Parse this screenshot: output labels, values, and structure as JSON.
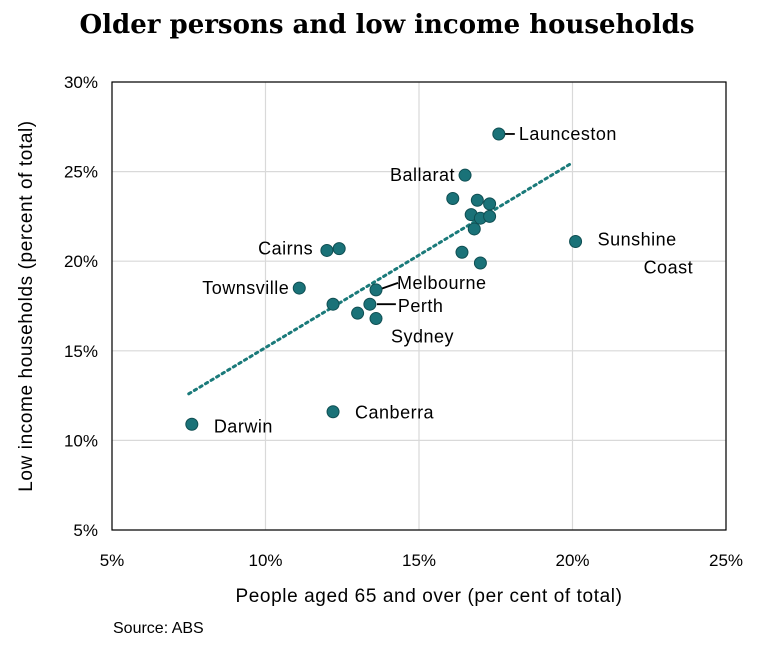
{
  "chart_data": {
    "type": "scatter",
    "title": "Older persons and low income households",
    "xlabel": "People aged 65 and over (per cent of total)",
    "ylabel": "Low income households (percent of total)",
    "source": "Source: ABS",
    "xlim": [
      5,
      25
    ],
    "ylim": [
      5,
      30
    ],
    "x_ticks": [
      "5%",
      "10%",
      "15%",
      "20%",
      "25%"
    ],
    "y_ticks": [
      "5%",
      "10%",
      "15%",
      "20%",
      "25%",
      "30%"
    ],
    "grid": true,
    "legend": "none",
    "colors": {
      "marker": "#1a7278",
      "marker_edge": "#0f4e52",
      "trend": "#1a7a7a",
      "grid": "#d9d9d9"
    },
    "trendline": {
      "style": "dotted",
      "x": [
        7.5,
        20.0
      ],
      "y": [
        12.6,
        25.5
      ]
    },
    "points": [
      {
        "x": 17.6,
        "y": 27.1,
        "label": "Launceston"
      },
      {
        "x": 16.5,
        "y": 24.8,
        "label": "Ballarat"
      },
      {
        "x": 16.1,
        "y": 23.5,
        "label": ""
      },
      {
        "x": 16.9,
        "y": 23.4,
        "label": ""
      },
      {
        "x": 17.3,
        "y": 23.2,
        "label": ""
      },
      {
        "x": 16.7,
        "y": 22.6,
        "label": ""
      },
      {
        "x": 17.0,
        "y": 22.4,
        "label": ""
      },
      {
        "x": 17.3,
        "y": 22.5,
        "label": ""
      },
      {
        "x": 16.8,
        "y": 21.8,
        "label": ""
      },
      {
        "x": 20.1,
        "y": 21.1,
        "label": "Sunshine Coast"
      },
      {
        "x": 12.4,
        "y": 20.7,
        "label": "Cairns"
      },
      {
        "x": 12.0,
        "y": 20.6,
        "label": ""
      },
      {
        "x": 16.4,
        "y": 20.5,
        "label": ""
      },
      {
        "x": 17.0,
        "y": 19.9,
        "label": ""
      },
      {
        "x": 11.1,
        "y": 18.5,
        "label": "Townsville"
      },
      {
        "x": 13.6,
        "y": 18.4,
        "label": "Melbourne"
      },
      {
        "x": 12.2,
        "y": 17.6,
        "label": ""
      },
      {
        "x": 13.4,
        "y": 17.6,
        "label": "Perth"
      },
      {
        "x": 13.0,
        "y": 17.1,
        "label": ""
      },
      {
        "x": 13.6,
        "y": 16.8,
        "label": "Sydney"
      },
      {
        "x": 12.2,
        "y": 11.6,
        "label": "Canberra"
      },
      {
        "x": 7.6,
        "y": 10.9,
        "label": "Darwin"
      }
    ]
  }
}
